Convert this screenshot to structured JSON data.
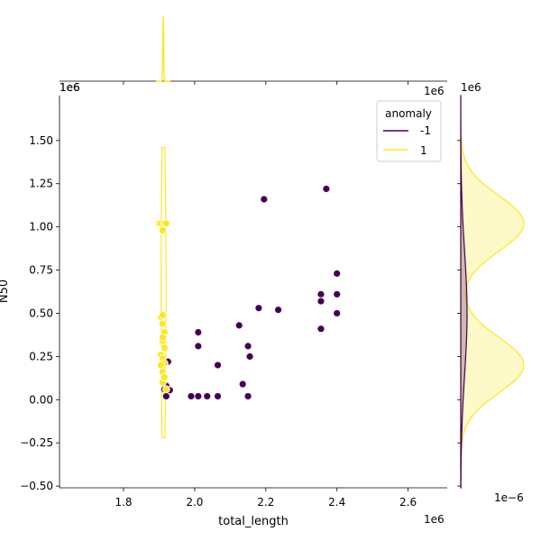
{
  "chart_data": {
    "type": "scatter",
    "title": "",
    "xlabel": "total_length",
    "ylabel": "N50",
    "x_offset_label": "1e6",
    "y_offset_label": "1e6",
    "marg_x_offset_label": "1e6",
    "marg_y_offset_label": "1e6",
    "marg_y_density_offset_label": "1e−6",
    "xlim": [
      1.62,
      2.71
    ],
    "ylim": [
      -0.51,
      1.76
    ],
    "x_ticks": [
      1.8,
      2.0,
      2.2,
      2.4,
      2.6
    ],
    "x_tick_labels": [
      "1.8",
      "2.0",
      "2.2",
      "2.4",
      "2.6"
    ],
    "y_ticks": [
      -0.5,
      -0.25,
      0.0,
      0.25,
      0.5,
      0.75,
      1.0,
      1.25,
      1.5
    ],
    "y_tick_labels": [
      "−0.50",
      "−0.25",
      "0.00",
      "0.25",
      "0.50",
      "0.75",
      "1.00",
      "1.25",
      "1.50"
    ],
    "legend": {
      "title": "anomaly",
      "placement": "upper right",
      "entries": [
        {
          "label": "-1",
          "color": "#440154"
        },
        {
          "label": "1",
          "color": "#fde725"
        }
      ]
    },
    "colors": {
      "anomaly": "#440154",
      "normal": "#fde725"
    },
    "series": [
      {
        "name": "-1",
        "color": "#440154",
        "x": [
          1.92,
          1.92,
          1.925,
          1.93,
          1.915,
          1.99,
          2.01,
          2.035,
          2.065,
          2.01,
          2.01,
          2.065,
          2.125,
          2.135,
          2.15,
          2.15,
          2.155,
          2.18,
          2.195,
          2.235,
          2.355,
          2.355,
          2.355,
          2.37,
          2.4,
          2.4,
          2.4
        ],
        "y": [
          0.02,
          0.08,
          0.22,
          0.055,
          0.06,
          0.02,
          0.02,
          0.02,
          0.02,
          0.31,
          0.39,
          0.2,
          0.43,
          0.09,
          0.02,
          0.31,
          0.25,
          0.53,
          1.16,
          0.52,
          0.41,
          0.61,
          0.57,
          1.22,
          0.73,
          0.61,
          0.5
        ]
      },
      {
        "name": "1",
        "color": "#fde725",
        "x": [
          1.9,
          1.905,
          1.915,
          1.91,
          1.92,
          1.905,
          1.91,
          1.91,
          1.915,
          1.91,
          1.915,
          1.905,
          1.91,
          1.915,
          1.91,
          1.91,
          1.905,
          1.91,
          1.92,
          1.91,
          1.915,
          1.91,
          1.915
        ],
        "y": [
          1.02,
          1.02,
          1.02,
          0.98,
          1.02,
          0.48,
          0.49,
          0.44,
          0.39,
          0.34,
          0.29,
          0.26,
          0.24,
          0.21,
          0.18,
          0.16,
          0.2,
          0.1,
          0.06,
          0.44,
          0.3,
          0.36,
          0.13
        ]
      }
    ],
    "kde_x_series": [
      {
        "name": "1",
        "x_center": 1.9115,
        "x_sd": 0.0012,
        "height": 1.0
      }
    ],
    "kde_joint_series": [
      {
        "name": "1",
        "x_center": 1.9125,
        "y_range": [
          -0.22,
          1.46
        ]
      }
    ],
    "kde_y_series": [
      {
        "name": "-1",
        "peak_y": 0.5,
        "sd": 0.36,
        "density_max": 0.1
      },
      {
        "name": "1",
        "components": [
          {
            "mean": 1.02,
            "sd": 0.16,
            "weight": 0.5
          },
          {
            "mean": 0.2,
            "sd": 0.16,
            "weight": 0.5
          }
        ],
        "density_max": 1.0
      }
    ]
  }
}
